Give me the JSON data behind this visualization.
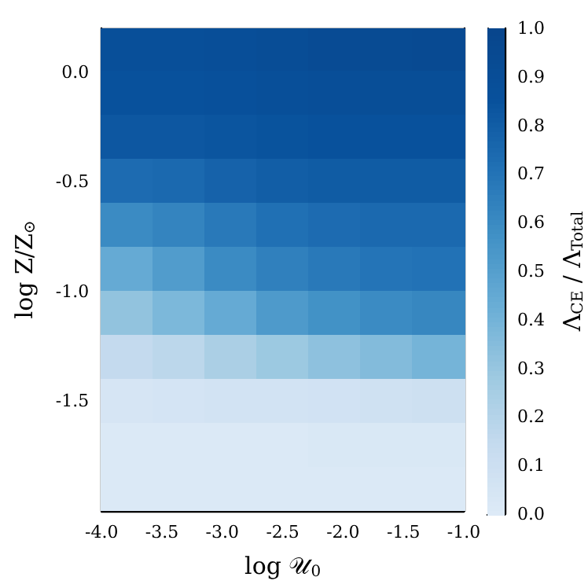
{
  "chart_data": {
    "type": "heatmap",
    "xlabel": "log 𝒰$_{0}$",
    "ylabel": "log Z/Z$_{⊙}$",
    "clabel": "Λ$_{CE}$ / Λ$_{Total}$",
    "x": [
      -3.79,
      -3.36,
      -2.93,
      -2.5,
      -2.07,
      -1.64,
      -1.21
    ],
    "y": [
      0.1,
      -0.1,
      -0.3,
      -0.5,
      -0.7,
      -0.9,
      -1.1,
      -1.3,
      -1.5,
      -1.7,
      -1.9
    ],
    "xlim": [
      -4.0,
      -1.0
    ],
    "ylim": [
      -2.0,
      0.2
    ],
    "xticks": [
      {
        "value": -4,
        "label": "-4.0"
      },
      {
        "value": -3.5,
        "label": "-3.5"
      },
      {
        "value": -3,
        "label": "-3.0"
      },
      {
        "value": -2.5,
        "label": "-2.5"
      },
      {
        "value": -2,
        "label": "-2.0"
      },
      {
        "value": -1.5,
        "label": "-1.5"
      },
      {
        "value": -1,
        "label": "-1.0"
      }
    ],
    "yticks": [
      {
        "value": 0,
        "label": "0.0"
      },
      {
        "value": -0.5,
        "label": "-0.5"
      },
      {
        "value": -1,
        "label": "-1.0"
      },
      {
        "value": -1.5,
        "label": "-1.5"
      }
    ],
    "clim": [
      0,
      1
    ],
    "cticks": [
      {
        "value": 0,
        "label": "0.0"
      },
      {
        "value": 0.1,
        "label": "0.1"
      },
      {
        "value": 0.2,
        "label": "0.2"
      },
      {
        "value": 0.3,
        "label": "0.3"
      },
      {
        "value": 0.4,
        "label": "0.4"
      },
      {
        "value": 0.5,
        "label": "0.5"
      },
      {
        "value": 0.6,
        "label": "0.6"
      },
      {
        "value": 0.7,
        "label": "0.7"
      },
      {
        "value": 0.8,
        "label": "0.8"
      },
      {
        "value": 0.9,
        "label": "0.9"
      },
      {
        "value": 1,
        "label": "1.0"
      }
    ],
    "cells": [
      [
        0.88,
        0.88,
        0.89,
        0.91,
        0.93,
        0.94,
        0.95
      ],
      [
        0.86,
        0.86,
        0.87,
        0.88,
        0.89,
        0.9,
        0.9
      ],
      [
        0.83,
        0.83,
        0.84,
        0.85,
        0.86,
        0.86,
        0.86
      ],
      [
        0.74,
        0.75,
        0.78,
        0.8,
        0.81,
        0.81,
        0.81
      ],
      [
        0.6,
        0.63,
        0.68,
        0.72,
        0.74,
        0.75,
        0.75
      ],
      [
        0.45,
        0.52,
        0.6,
        0.65,
        0.68,
        0.7,
        0.71
      ],
      [
        0.32,
        0.38,
        0.45,
        0.53,
        0.57,
        0.6,
        0.62
      ],
      [
        0.15,
        0.18,
        0.24,
        0.29,
        0.33,
        0.36,
        0.4
      ],
      [
        0.05,
        0.06,
        0.07,
        0.07,
        0.08,
        0.09,
        0.1
      ],
      [
        0.02,
        0.02,
        0.02,
        0.02,
        0.03,
        0.03,
        0.03
      ],
      [
        0.02,
        0.02,
        0.02,
        0.02,
        0.02,
        0.02,
        0.02
      ]
    ]
  }
}
